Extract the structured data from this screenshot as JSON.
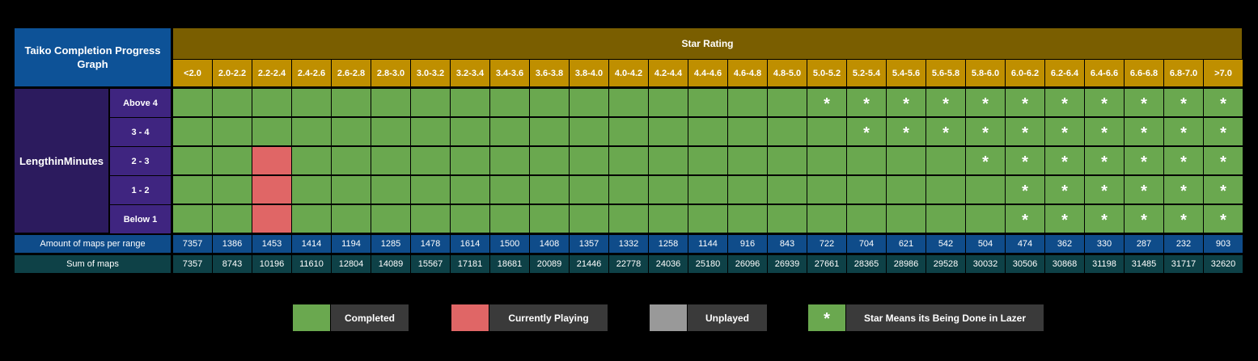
{
  "chart_data": {
    "type": "table",
    "title": "Taiko Completion Progress Graph",
    "column_header": "Star Rating",
    "row_header": "Length in Minutes",
    "row_header_lines": [
      "Length",
      "in",
      "Minutes"
    ],
    "ranges": [
      "<2.0",
      "2.0-2.2",
      "2.2-2.4",
      "2.4-2.6",
      "2.6-2.8",
      "2.8-3.0",
      "3.0-3.2",
      "3.2-3.4",
      "3.4-3.6",
      "3.6-3.8",
      "3.8-4.0",
      "4.0-4.2",
      "4.2-4.4",
      "4.4-4.6",
      "4.6-4.8",
      "4.8-5.0",
      "5.0-5.2",
      "5.2-5.4",
      "5.4-5.6",
      "5.6-5.8",
      "5.8-6.0",
      "6.0-6.2",
      "6.2-6.4",
      "6.4-6.6",
      "6.6-6.8",
      "6.8-7.0",
      ">7.0"
    ],
    "rows": [
      {
        "label": "Above 4",
        "status": "CCCCCCCCCCCCCCCCLLLLLLLLLLL"
      },
      {
        "label": "3 - 4",
        "status": "CCCCCCCCCCCCCCCCCLLLLLLLLLL"
      },
      {
        "label": "2 - 3",
        "status": "CCPCCCCCCCCCCCCCCCCCLLLLLLL"
      },
      {
        "label": "1 - 2",
        "status": "CCPCCCCCCCCCCCCCCCCCCLLLLLL"
      },
      {
        "label": "Below 1",
        "status": "CCPCCCCCCCCCCCCCCCCCCLLLLLL"
      }
    ],
    "status_codes": {
      "C": "Completed",
      "P": "Currently Playing",
      "L": "Star Means its Being Done in Lazer"
    },
    "amount_label": "Amount of maps per range",
    "amount": [
      7357,
      1386,
      1453,
      1414,
      1194,
      1285,
      1478,
      1614,
      1500,
      1408,
      1357,
      1332,
      1258,
      1144,
      916,
      843,
      722,
      704,
      621,
      542,
      504,
      474,
      362,
      330,
      287,
      232,
      903
    ],
    "sum_label": "Sum of maps",
    "sum": [
      7357,
      8743,
      10196,
      11610,
      12804,
      14089,
      15567,
      17181,
      18681,
      20089,
      21446,
      22778,
      24036,
      25180,
      26096,
      26939,
      27661,
      28365,
      28986,
      29528,
      30032,
      30506,
      30868,
      31198,
      31485,
      31717,
      32620
    ],
    "star_mark": "*"
  },
  "legend": [
    {
      "label": "Completed",
      "color": "#6aa84f",
      "mark": ""
    },
    {
      "label": "Currently Playing",
      "color": "#e06666",
      "mark": ""
    },
    {
      "label": "Unplayed",
      "color": "#999999",
      "mark": ""
    },
    {
      "label": "Star Means its Being Done in Lazer",
      "color": "#6aa84f",
      "mark": "*"
    }
  ],
  "colors": {
    "completed": "#6aa84f",
    "playing": "#e06666",
    "unplayed": "#999999"
  }
}
